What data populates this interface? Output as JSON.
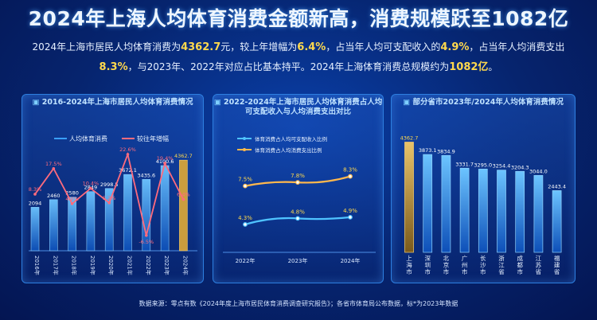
{
  "title": "2024年上海人均体育消费金额新高，消费规模跃至1082亿",
  "summary": {
    "p1": "2024年上海市居民人均体育消费为",
    "v1": "4362.7",
    "p2": "元，较上年增幅为",
    "v2": "6.4%",
    "p3": "，占当年人均可支配收入的",
    "v3": "4.9%",
    "p4": "，占当年人均消费支出",
    "v4": "8.3%",
    "p5": "，与2023年、2022年对应占比基本持平。2024年上海体育消费总规模约为",
    "v5": "1082亿",
    "p6": "。"
  },
  "footnote": "数据来源：零点有数《2024年度上海市居民体育消费调查研究报告》；各省市体育局公布数据，标*为2023年数据",
  "colors": {
    "bar": "#3aa0ff",
    "line": "#ff6b7d",
    "income": "#4fc3ff",
    "spend": "#ffb84d",
    "highlight": "#ffd94d"
  },
  "chart_data": [
    {
      "type": "bar",
      "title": "2016-2024年上海市居民人均体育消费情况",
      "categories": [
        "2016年",
        "2017年",
        "2018年",
        "2019年",
        "2020年",
        "2021年",
        "2022年",
        "2023年",
        "2024年"
      ],
      "series": [
        {
          "name": "人均体育消费",
          "values": [
            2094,
            2460,
            2580,
            2849,
            2998.5,
            3672.1,
            3435.6,
            4100.6,
            4362.7
          ],
          "labels": [
            "2094",
            "2460",
            "2580",
            "2849",
            "2998.5",
            "3672.1",
            "3435.6",
            "4100.6",
            "4362.7"
          ]
        },
        {
          "name": "较往年增幅",
          "kind": "line",
          "values": [
            8.3,
            17.5,
            4.9,
            10.4,
            5.2,
            22.6,
            -6.5,
            19.4,
            6.4
          ],
          "labels": [
            "8.3%",
            "17.5%",
            "4.9%",
            "10.4%",
            "5.2%",
            "22.6%",
            "-6.5%",
            "19.4%",
            "6.4%"
          ]
        }
      ]
    },
    {
      "type": "line",
      "title": "2022-2024年上海市居民人均体育消费占人均可支配收入与人均消费支出对比",
      "categories": [
        "2022年",
        "2023年",
        "2024年"
      ],
      "series": [
        {
          "name": "体育消费占人均可支配收入比例",
          "values": [
            4.3,
            4.8,
            4.9
          ],
          "labels": [
            "4.3%",
            "4.8%",
            "4.9%"
          ]
        },
        {
          "name": "体育消费占人均消费支出比例",
          "values": [
            7.5,
            7.8,
            8.3
          ],
          "labels": [
            "7.5%",
            "7.8%",
            "8.3%"
          ]
        }
      ]
    },
    {
      "type": "bar",
      "title": "部分省市2023年/2024年人均体育消费情况",
      "categories": [
        "上海市",
        "深圳市",
        "北京市",
        "广州市",
        "长沙市",
        "浙江省",
        "成都市",
        "江苏省",
        "福建省"
      ],
      "values": [
        4362.7,
        3873.1,
        3834.9,
        3331.7,
        3295,
        3254.4,
        3204.3,
        3044,
        2443.4
      ],
      "labels": [
        "4362.7",
        "3873.1",
        "3834.9",
        "3331.7",
        "3295.0",
        "3254.4",
        "3204.3",
        "3044.0",
        "2443.4"
      ],
      "highlight_index": 0
    }
  ]
}
